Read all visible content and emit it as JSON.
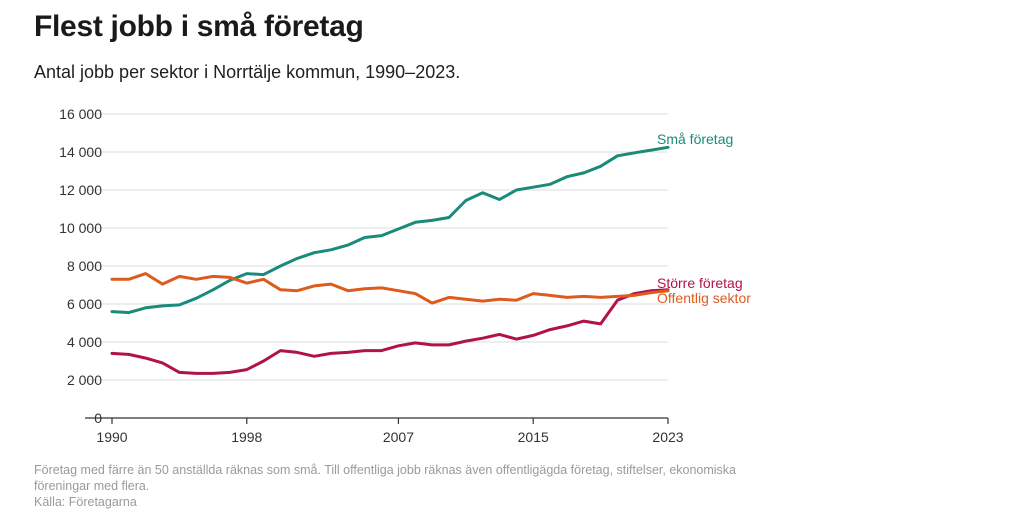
{
  "title": "Flest jobb i små företag",
  "subtitle": "Antal jobb per sektor i Norrtälje kommun, 1990–2023.",
  "footnote": "Företag med färre än 50 anställda räknas som små. Till offentliga jobb räknas även offentligägda företag, stiftelser, ekonomiska föreningar med flera.",
  "source": "Källa: Företagarna",
  "chart_data": {
    "type": "line",
    "title": "Flest jobb i små företag",
    "subtitle": "Antal jobb per sektor i Norrtälje kommun, 1990–2023.",
    "xlabel": "",
    "ylabel": "",
    "xlim": [
      1990,
      2023
    ],
    "ylim": [
      0,
      16000
    ],
    "x_ticks": [
      1990,
      1998,
      2007,
      2015,
      2023
    ],
    "x_tick_labels": [
      "1990",
      "1998",
      "2007",
      "2015",
      "2023"
    ],
    "y_ticks": [
      0,
      2000,
      4000,
      6000,
      8000,
      10000,
      12000,
      14000,
      16000
    ],
    "y_tick_labels": [
      "0",
      "2 000",
      "4 000",
      "6 000",
      "8 000",
      "10 000",
      "12 000",
      "14 000",
      "16 000"
    ],
    "grid": true,
    "legend": "direct labels at line ends",
    "x": [
      1990,
      1991,
      1992,
      1993,
      1994,
      1995,
      1996,
      1997,
      1998,
      1999,
      2000,
      2001,
      2002,
      2003,
      2004,
      2005,
      2006,
      2007,
      2008,
      2009,
      2010,
      2011,
      2012,
      2013,
      2014,
      2015,
      2016,
      2017,
      2018,
      2019,
      2020,
      2021,
      2022,
      2023
    ],
    "series": [
      {
        "name": "Små företag",
        "color": "#1a8a7a",
        "values": [
          5600,
          5550,
          5800,
          5900,
          5950,
          6300,
          6750,
          7250,
          7600,
          7550,
          8000,
          8400,
          8700,
          8850,
          9100,
          9500,
          9600,
          9950,
          10300,
          10400,
          10550,
          11450,
          11850,
          11500,
          12000,
          12150,
          12300,
          12700,
          12900,
          13250,
          13800,
          13950,
          14100,
          14250
        ]
      },
      {
        "name": "Större företag",
        "color": "#b0124e",
        "values": [
          3400,
          3350,
          3150,
          2900,
          2400,
          2350,
          2350,
          2400,
          2550,
          3000,
          3550,
          3450,
          3250,
          3400,
          3450,
          3550,
          3550,
          3800,
          3950,
          3850,
          3850,
          4050,
          4200,
          4400,
          4150,
          4350,
          4650,
          4850,
          5100,
          4950,
          6200,
          6550,
          6700,
          6750
        ]
      },
      {
        "name": "Offentlig sektor",
        "color": "#de5b1e",
        "values": [
          7300,
          7300,
          7600,
          7050,
          7450,
          7300,
          7450,
          7400,
          7100,
          7300,
          6750,
          6700,
          6950,
          7050,
          6700,
          6800,
          6850,
          6700,
          6550,
          6050,
          6350,
          6250,
          6150,
          6250,
          6200,
          6550,
          6450,
          6350,
          6400,
          6350,
          6400,
          6450,
          6600,
          6700
        ]
      }
    ]
  }
}
